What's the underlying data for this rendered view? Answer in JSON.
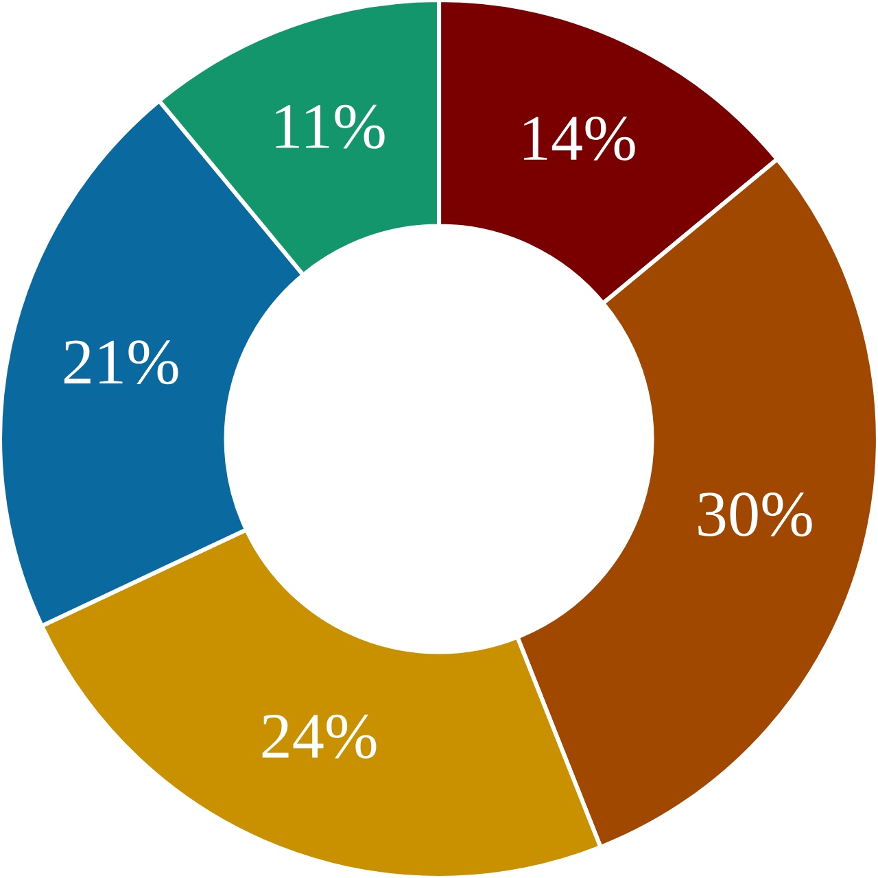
{
  "chart_data": {
    "type": "donut",
    "categories": [
      null,
      null,
      null,
      null,
      null
    ],
    "values": [
      14,
      30,
      24,
      21,
      11
    ],
    "colors": [
      "#7a0000",
      "#a04800",
      "#c99100",
      "#0a6aa0",
      "#13966b"
    ],
    "value_labels": [
      "14%",
      "30%",
      "24%",
      "21%",
      "11%"
    ]
  }
}
